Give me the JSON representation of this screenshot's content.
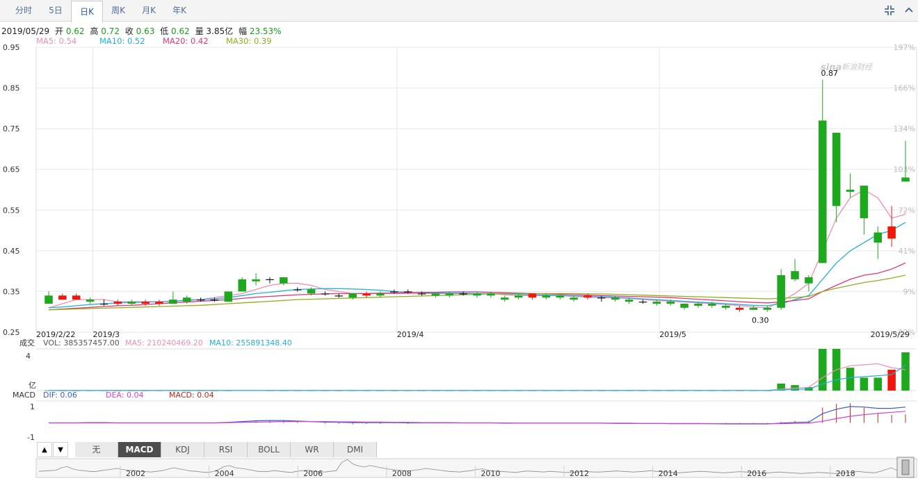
{
  "tabs": [
    {
      "label": "分时",
      "active": false
    },
    {
      "label": "5日",
      "active": false
    },
    {
      "label": "日K",
      "active": true
    },
    {
      "label": "周K",
      "active": false
    },
    {
      "label": "月K",
      "active": false
    },
    {
      "label": "年K",
      "active": false
    }
  ],
  "toolbar_icons": [
    "shrink-icon",
    "chevron-up-icon"
  ],
  "info": {
    "date": "2019/05/29",
    "open_label": "开",
    "open": "0.62",
    "high_label": "高",
    "high": "0.72",
    "close_label": "收",
    "close": "0.63",
    "low_label": "低",
    "low": "0.62",
    "vol_label": "量",
    "vol": "3.85亿",
    "amp_label": "幅",
    "amp": "23.53%"
  },
  "ma": [
    {
      "text": "MA5: 0.54",
      "color": "#f08db4"
    },
    {
      "text": "MA10: 0.52",
      "color": "#1fb1d9"
    },
    {
      "text": "MA20: 0.42",
      "color": "#e0357a"
    },
    {
      "text": "MA30: 0.39",
      "color": "#8fae1b"
    }
  ],
  "watermark": "新浪财经",
  "watermark_logo": "sina",
  "colors": {
    "up": "#f0180c",
    "down": "#1ea81e",
    "grid": "#e8e8e8",
    "axis": "#555"
  },
  "chart_data": {
    "type": "candlestick",
    "y_ticks": [
      "0.95",
      "0.85",
      "0.75",
      "0.65",
      "0.55",
      "0.45",
      "0.35",
      "0.25"
    ],
    "ylim": [
      0.25,
      0.95
    ],
    "right_ticks": [
      "197%",
      "166%",
      "134%",
      "103%",
      "72%",
      "41%",
      "9%",
      "-22%"
    ],
    "x_labels": [
      {
        "label": "2019/2/22",
        "index": 0
      },
      {
        "label": "2019/3",
        "index": 4
      },
      {
        "label": "2019/4",
        "index": 26
      },
      {
        "label": "2019/5",
        "index": 45
      },
      {
        "label": "2019/5/29",
        "index": 63
      }
    ],
    "annotations": [
      {
        "text": "0.87",
        "index": 56,
        "value": 0.87
      },
      {
        "text": "0.30",
        "index": 52,
        "value": 0.3
      }
    ],
    "candles": [
      [
        0.32,
        0.34,
        0.35,
        0.32
      ],
      [
        0.34,
        0.33,
        0.345,
        0.33
      ],
      [
        0.34,
        0.33,
        0.345,
        0.33
      ],
      [
        0.325,
        0.33,
        0.335,
        0.32
      ],
      [
        0.32,
        0.32,
        0.33,
        0.315
      ],
      [
        0.325,
        0.32,
        0.33,
        0.315
      ],
      [
        0.32,
        0.325,
        0.33,
        0.315
      ],
      [
        0.325,
        0.32,
        0.33,
        0.315
      ],
      [
        0.325,
        0.32,
        0.33,
        0.315
      ],
      [
        0.32,
        0.33,
        0.35,
        0.32
      ],
      [
        0.325,
        0.335,
        0.34,
        0.32
      ],
      [
        0.33,
        0.33,
        0.335,
        0.325
      ],
      [
        0.33,
        0.33,
        0.335,
        0.325
      ],
      [
        0.325,
        0.35,
        0.35,
        0.325
      ],
      [
        0.35,
        0.38,
        0.385,
        0.35
      ],
      [
        0.375,
        0.38,
        0.395,
        0.365
      ],
      [
        0.38,
        0.38,
        0.385,
        0.37
      ],
      [
        0.37,
        0.385,
        0.385,
        0.365
      ],
      [
        0.355,
        0.355,
        0.36,
        0.35
      ],
      [
        0.345,
        0.355,
        0.36,
        0.34
      ],
      [
        0.345,
        0.345,
        0.35,
        0.34
      ],
      [
        0.34,
        0.34,
        0.345,
        0.335
      ],
      [
        0.335,
        0.345,
        0.345,
        0.33
      ],
      [
        0.345,
        0.34,
        0.35,
        0.335
      ],
      [
        0.34,
        0.345,
        0.35,
        0.335
      ],
      [
        0.35,
        0.35,
        0.355,
        0.345
      ],
      [
        0.35,
        0.35,
        0.355,
        0.345
      ],
      [
        0.345,
        0.345,
        0.35,
        0.34
      ],
      [
        0.34,
        0.345,
        0.345,
        0.335
      ],
      [
        0.34,
        0.345,
        0.35,
        0.335
      ],
      [
        0.345,
        0.345,
        0.35,
        0.34
      ],
      [
        0.34,
        0.345,
        0.35,
        0.335
      ],
      [
        0.34,
        0.345,
        0.35,
        0.335
      ],
      [
        0.33,
        0.335,
        0.34,
        0.325
      ],
      [
        0.335,
        0.34,
        0.345,
        0.33
      ],
      [
        0.345,
        0.335,
        0.345,
        0.33
      ],
      [
        0.335,
        0.34,
        0.345,
        0.33
      ],
      [
        0.335,
        0.34,
        0.345,
        0.33
      ],
      [
        0.33,
        0.335,
        0.34,
        0.325
      ],
      [
        0.34,
        0.335,
        0.345,
        0.33
      ],
      [
        0.335,
        0.335,
        0.34,
        0.325
      ],
      [
        0.33,
        0.335,
        0.34,
        0.325
      ],
      [
        0.325,
        0.33,
        0.335,
        0.32
      ],
      [
        0.325,
        0.325,
        0.33,
        0.32
      ],
      [
        0.32,
        0.325,
        0.33,
        0.315
      ],
      [
        0.32,
        0.325,
        0.33,
        0.315
      ],
      [
        0.31,
        0.32,
        0.32,
        0.305
      ],
      [
        0.315,
        0.32,
        0.325,
        0.31
      ],
      [
        0.315,
        0.32,
        0.325,
        0.31
      ],
      [
        0.31,
        0.315,
        0.32,
        0.305
      ],
      [
        0.31,
        0.305,
        0.315,
        0.3
      ],
      [
        0.305,
        0.31,
        0.315,
        0.305
      ],
      [
        0.305,
        0.31,
        0.315,
        0.3
      ],
      [
        0.31,
        0.39,
        0.405,
        0.305
      ],
      [
        0.38,
        0.4,
        0.43,
        0.375
      ],
      [
        0.37,
        0.385,
        0.39,
        0.35
      ],
      [
        0.42,
        0.77,
        0.87,
        0.42
      ],
      [
        0.56,
        0.74,
        0.74,
        0.52
      ],
      [
        0.595,
        0.6,
        0.64,
        0.58
      ],
      [
        0.53,
        0.61,
        0.61,
        0.49
      ],
      [
        0.47,
        0.495,
        0.51,
        0.43
      ],
      [
        0.51,
        0.48,
        0.56,
        0.46
      ],
      [
        0.62,
        0.63,
        0.72,
        0.62
      ]
    ],
    "ma_lines": {
      "MA5": [
        0.31,
        0.32,
        0.33,
        0.33,
        0.33,
        0.325,
        0.325,
        0.325,
        0.325,
        0.325,
        0.33,
        0.33,
        0.335,
        0.34,
        0.345,
        0.355,
        0.365,
        0.37,
        0.37,
        0.365,
        0.355,
        0.35,
        0.345,
        0.345,
        0.345,
        0.345,
        0.345,
        0.345,
        0.345,
        0.345,
        0.345,
        0.345,
        0.345,
        0.342,
        0.34,
        0.34,
        0.34,
        0.34,
        0.338,
        0.336,
        0.335,
        0.334,
        0.333,
        0.33,
        0.328,
        0.326,
        0.324,
        0.322,
        0.32,
        0.318,
        0.315,
        0.312,
        0.31,
        0.325,
        0.345,
        0.37,
        0.45,
        0.53,
        0.58,
        0.6,
        0.58,
        0.53,
        0.54
      ],
      "MA10": [
        0.31,
        0.312,
        0.315,
        0.318,
        0.32,
        0.322,
        0.323,
        0.324,
        0.325,
        0.326,
        0.328,
        0.33,
        0.332,
        0.335,
        0.34,
        0.345,
        0.348,
        0.352,
        0.355,
        0.356,
        0.357,
        0.357,
        0.356,
        0.355,
        0.353,
        0.35,
        0.348,
        0.347,
        0.346,
        0.346,
        0.346,
        0.345,
        0.345,
        0.344,
        0.343,
        0.342,
        0.341,
        0.34,
        0.339,
        0.338,
        0.337,
        0.336,
        0.334,
        0.332,
        0.33,
        0.328,
        0.326,
        0.324,
        0.322,
        0.32,
        0.318,
        0.316,
        0.315,
        0.32,
        0.33,
        0.34,
        0.38,
        0.42,
        0.45,
        0.47,
        0.49,
        0.5,
        0.52
      ],
      "MA20": [
        0.305,
        0.307,
        0.309,
        0.311,
        0.313,
        0.315,
        0.316,
        0.318,
        0.32,
        0.322,
        0.324,
        0.326,
        0.328,
        0.33,
        0.333,
        0.336,
        0.338,
        0.34,
        0.342,
        0.343,
        0.344,
        0.345,
        0.345,
        0.345,
        0.346,
        0.346,
        0.347,
        0.348,
        0.348,
        0.349,
        0.349,
        0.349,
        0.348,
        0.347,
        0.346,
        0.345,
        0.344,
        0.343,
        0.342,
        0.341,
        0.34,
        0.339,
        0.338,
        0.337,
        0.336,
        0.335,
        0.333,
        0.331,
        0.329,
        0.327,
        0.325,
        0.323,
        0.322,
        0.324,
        0.328,
        0.332,
        0.35,
        0.365,
        0.38,
        0.39,
        0.395,
        0.405,
        0.42
      ],
      "MA30": [
        0.305,
        0.306,
        0.307,
        0.308,
        0.309,
        0.31,
        0.311,
        0.312,
        0.313,
        0.314,
        0.315,
        0.316,
        0.318,
        0.32,
        0.322,
        0.324,
        0.326,
        0.328,
        0.33,
        0.331,
        0.332,
        0.333,
        0.334,
        0.335,
        0.336,
        0.337,
        0.338,
        0.339,
        0.34,
        0.341,
        0.342,
        0.343,
        0.344,
        0.345,
        0.345,
        0.345,
        0.345,
        0.345,
        0.345,
        0.344,
        0.344,
        0.343,
        0.342,
        0.341,
        0.34,
        0.339,
        0.338,
        0.337,
        0.336,
        0.335,
        0.334,
        0.333,
        0.332,
        0.333,
        0.335,
        0.338,
        0.35,
        0.358,
        0.365,
        0.372,
        0.377,
        0.383,
        0.39
      ]
    },
    "volume": {
      "label": "成交",
      "vol_text": "VOL: 385357457.00",
      "ma5_text": "MA5: 210240469.20",
      "ma10_text": "MA10: 255891348.40",
      "tick_top": "4",
      "unit": "亿",
      "ylim": [
        0,
        4.2
      ],
      "values": [
        0.02,
        0.01,
        0.01,
        0.01,
        0.01,
        0.01,
        0.01,
        0.01,
        0.01,
        0.01,
        0.01,
        0.01,
        0.01,
        0.01,
        0.02,
        0.02,
        0.01,
        0.01,
        0.01,
        0.01,
        0.01,
        0.01,
        0.01,
        0.01,
        0.01,
        0.01,
        0.01,
        0.01,
        0.01,
        0.01,
        0.01,
        0.01,
        0.01,
        0.01,
        0.01,
        0.01,
        0.01,
        0.01,
        0.01,
        0.01,
        0.01,
        0.01,
        0.01,
        0.01,
        0.01,
        0.01,
        0.01,
        0.01,
        0.01,
        0.01,
        0.01,
        0.01,
        0.01,
        0.7,
        0.55,
        0.35,
        4.9,
        4.6,
        2.3,
        1.3,
        1.3,
        2.1,
        3.85
      ],
      "ma5": [
        0.01,
        0.01,
        0.01,
        0.01,
        0.01,
        0.01,
        0.01,
        0.01,
        0.01,
        0.01,
        0.01,
        0.01,
        0.01,
        0.01,
        0.01,
        0.01,
        0.01,
        0.01,
        0.01,
        0.01,
        0.01,
        0.01,
        0.01,
        0.01,
        0.01,
        0.01,
        0.01,
        0.01,
        0.01,
        0.01,
        0.01,
        0.01,
        0.01,
        0.01,
        0.01,
        0.01,
        0.01,
        0.01,
        0.01,
        0.01,
        0.01,
        0.01,
        0.01,
        0.01,
        0.01,
        0.01,
        0.01,
        0.01,
        0.01,
        0.01,
        0.01,
        0.01,
        0.01,
        0.15,
        0.26,
        0.33,
        1.3,
        2.1,
        2.5,
        2.6,
        2.7,
        2.3,
        2.1
      ],
      "ma10": [
        0.01,
        0.01,
        0.01,
        0.01,
        0.01,
        0.01,
        0.01,
        0.01,
        0.01,
        0.01,
        0.01,
        0.01,
        0.01,
        0.01,
        0.01,
        0.01,
        0.01,
        0.01,
        0.01,
        0.01,
        0.01,
        0.01,
        0.01,
        0.01,
        0.01,
        0.01,
        0.01,
        0.01,
        0.01,
        0.01,
        0.01,
        0.01,
        0.01,
        0.01,
        0.01,
        0.01,
        0.01,
        0.01,
        0.01,
        0.01,
        0.01,
        0.01,
        0.01,
        0.01,
        0.01,
        0.01,
        0.01,
        0.01,
        0.01,
        0.01,
        0.01,
        0.01,
        0.01,
        0.08,
        0.13,
        0.17,
        0.66,
        1.1,
        1.3,
        1.4,
        1.5,
        1.6,
        2.56
      ]
    },
    "macd": {
      "label": "MACD",
      "dif_text": "DIF: 0.06",
      "dea_text": "DEA: 0.04",
      "macd_text": "MACD: 0.04",
      "ticks": [
        "1",
        "-1"
      ],
      "ylim": [
        -1.4,
        1.4
      ],
      "dif": [
        0,
        0,
        0,
        0.01,
        0.01,
        0,
        0,
        0,
        0,
        0,
        0,
        0,
        0,
        0.02,
        0.05,
        0.08,
        0.09,
        0.09,
        0.07,
        0.05,
        0.03,
        0.02,
        0.01,
        0.01,
        0.01,
        0.01,
        0,
        0,
        0,
        0,
        0,
        0,
        0,
        -0.01,
        -0.01,
        -0.01,
        -0.01,
        -0.01,
        -0.01,
        -0.01,
        -0.01,
        -0.02,
        -0.02,
        -0.02,
        -0.02,
        -0.03,
        -0.03,
        -0.03,
        -0.03,
        -0.04,
        -0.04,
        -0.04,
        -0.04,
        -0.01,
        0.02,
        0.03,
        0.35,
        0.52,
        0.62,
        0.6,
        0.55,
        0.55,
        0.6
      ],
      "dea": [
        0,
        0,
        0,
        0,
        0,
        0,
        0,
        0,
        0,
        0,
        0,
        0,
        0,
        0.01,
        0.02,
        0.03,
        0.04,
        0.05,
        0.05,
        0.05,
        0.05,
        0.04,
        0.04,
        0.03,
        0.03,
        0.02,
        0.02,
        0.01,
        0.01,
        0.01,
        0,
        0,
        0,
        0,
        -0.01,
        -0.01,
        -0.01,
        -0.01,
        -0.01,
        -0.01,
        -0.01,
        -0.01,
        -0.01,
        -0.02,
        -0.02,
        -0.02,
        -0.02,
        -0.02,
        -0.03,
        -0.03,
        -0.03,
        -0.03,
        -0.03,
        -0.03,
        -0.02,
        -0.01,
        0.06,
        0.16,
        0.25,
        0.31,
        0.36,
        0.4,
        0.44
      ],
      "hist": [
        0,
        0,
        0,
        0.01,
        0.01,
        0,
        0,
        0,
        0,
        0,
        0,
        0,
        0,
        0.02,
        0.06,
        0.1,
        0.1,
        0.08,
        0.04,
        0,
        -0.04,
        -0.04,
        -0.06,
        -0.04,
        -0.04,
        -0.02,
        -0.04,
        -0.02,
        -0.02,
        -0.02,
        0,
        0,
        0,
        -0.02,
        0,
        0,
        0,
        0,
        0,
        0,
        0,
        -0.02,
        -0.02,
        0,
        0,
        -0.02,
        -0.02,
        -0.02,
        0,
        -0.02,
        -0.02,
        -0.02,
        -0.02,
        0.04,
        0.08,
        0.08,
        0.58,
        0.72,
        0.74,
        0.58,
        0.38,
        0.3,
        0.32
      ]
    }
  },
  "indicator_buttons": [
    {
      "label": "无",
      "active": false
    },
    {
      "label": "MACD",
      "active": true
    },
    {
      "label": "KDJ",
      "active": false
    },
    {
      "label": "RSI",
      "active": false
    },
    {
      "label": "BOLL",
      "active": false
    },
    {
      "label": "WR",
      "active": false
    },
    {
      "label": "DMI",
      "active": false
    }
  ],
  "nav_buttons": {
    "prev": "▲",
    "next": "▼"
  },
  "timeline": {
    "years": [
      "2002",
      "2004",
      "2006",
      "2008",
      "2010",
      "2012",
      "2014",
      "2016",
      "2018"
    ],
    "history": [
      0.3,
      0.32,
      0.34,
      0.36,
      0.5,
      0.56,
      0.44,
      0.36,
      0.34,
      0.3,
      0.28,
      0.34,
      0.38,
      0.42,
      0.46,
      0.4,
      0.36,
      0.34,
      0.3,
      0.28,
      0.26,
      0.3,
      0.34,
      0.42,
      0.5,
      0.44,
      0.38,
      0.32,
      0.3,
      0.26,
      0.24,
      0.28,
      0.4,
      0.56,
      0.62,
      0.5,
      0.46,
      0.42,
      0.36,
      0.3,
      0.28,
      0.3,
      0.34,
      0.3,
      0.26,
      0.24,
      0.3,
      0.34,
      0.36,
      0.3,
      0.28,
      0.26,
      0.3,
      0.34,
      0.8,
      0.95,
      0.7,
      0.6,
      0.54,
      0.62,
      0.56,
      0.5,
      0.44,
      0.4,
      0.36,
      0.34,
      0.32,
      0.36,
      0.4,
      0.46,
      0.42,
      0.38,
      0.34,
      0.3,
      0.28,
      0.26,
      0.3,
      0.34,
      0.4,
      0.44,
      0.36,
      0.32,
      0.3,
      0.28,
      0.26,
      0.24,
      0.28,
      0.32,
      0.3,
      0.28,
      0.26,
      0.3,
      0.28,
      0.26,
      0.24,
      0.24,
      0.26,
      0.3,
      0.28,
      0.26,
      0.26,
      0.28,
      0.3,
      0.32,
      0.3,
      0.28,
      0.26,
      0.28,
      0.3,
      0.34,
      0.3,
      0.28,
      0.26,
      0.24,
      0.22,
      0.24,
      0.26,
      0.28,
      0.3,
      0.28,
      0.26,
      0.24,
      0.22,
      0.24,
      0.26,
      0.28,
      0.26,
      0.24,
      0.22,
      0.2,
      0.22,
      0.24,
      0.26,
      0.24,
      0.22,
      0.2,
      0.18,
      0.2,
      0.22,
      0.24,
      0.22,
      0.2,
      0.18,
      0.2,
      0.22,
      0.24,
      0.3,
      0.26,
      0.24,
      0.22,
      0.3,
      0.4,
      0.5,
      0.34
    ]
  }
}
